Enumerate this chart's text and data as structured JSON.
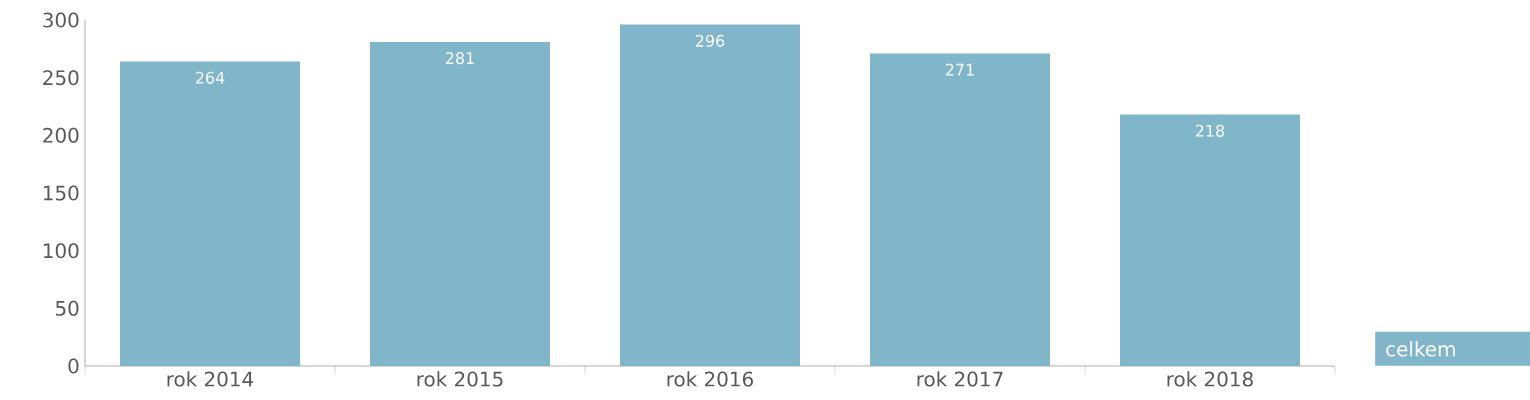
{
  "chart_data": {
    "type": "bar",
    "categories": [
      "rok 2014",
      "rok 2015",
      "rok 2016",
      "rok 2017",
      "rok 2018"
    ],
    "series": [
      {
        "name": "celkem",
        "color": "#80b5ca",
        "values": [
          264,
          281,
          296,
          271,
          218
        ]
      }
    ],
    "ylim": [
      0,
      300
    ],
    "yticks": [
      0,
      50,
      100,
      150,
      200,
      250,
      300
    ],
    "data_labels": true,
    "legend": "bottom right",
    "grid": false
  }
}
